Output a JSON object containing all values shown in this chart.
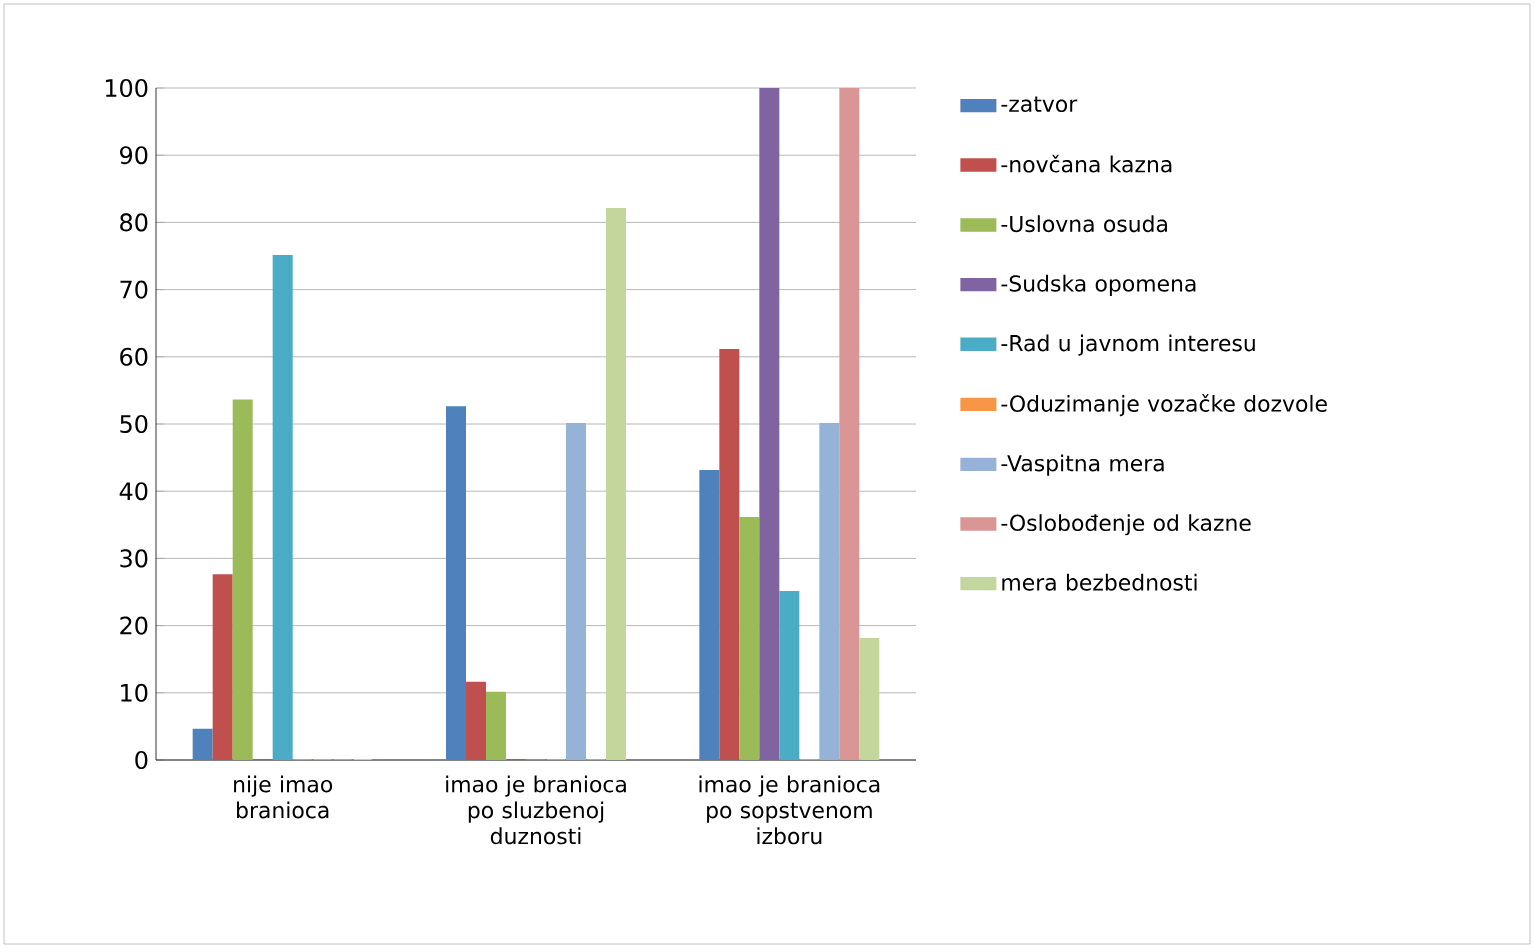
{
  "chart_data": {
    "type": "bar",
    "categories": [
      "nije imao branioca",
      "imao je branioca po sluzbenoj duznosti",
      "imao je branioca po sopstvenom izboru"
    ],
    "series": [
      {
        "name": "-zatvor",
        "color": "#4f81bd",
        "values": [
          4.5,
          52.5,
          43
        ]
      },
      {
        "name": "-novčana kazna",
        "color": "#c0504d",
        "values": [
          27.5,
          11.5,
          61
        ]
      },
      {
        "name": "-Uslovna osuda",
        "color": "#9bbb59",
        "values": [
          53.5,
          10,
          36
        ]
      },
      {
        "name": "-Sudska opomena",
        "color": "#8064a2",
        "values": [
          0,
          0,
          100
        ]
      },
      {
        "name": "-Rad u javnom interesu",
        "color": "#4bacc6",
        "values": [
          75,
          0,
          25
        ]
      },
      {
        "name": "-Oduzimanje vozačke dozvole",
        "color": "#f79646",
        "values": [
          0,
          0,
          0
        ]
      },
      {
        "name": "-Vaspitna mera",
        "color": "#95b3d7",
        "values": [
          0,
          50,
          50
        ]
      },
      {
        "name": "-Oslobođenje od kazne",
        "color": "#d99694",
        "values": [
          0,
          0,
          100
        ]
      },
      {
        "name": "mera bezbednosti",
        "color": "#c3d69b",
        "values": [
          0,
          82,
          18
        ]
      }
    ],
    "ylim": [
      0,
      100
    ],
    "yticks": [
      0,
      10,
      20,
      30,
      40,
      50,
      60,
      70,
      80,
      90,
      100
    ],
    "grid": "y",
    "legend": "right"
  }
}
